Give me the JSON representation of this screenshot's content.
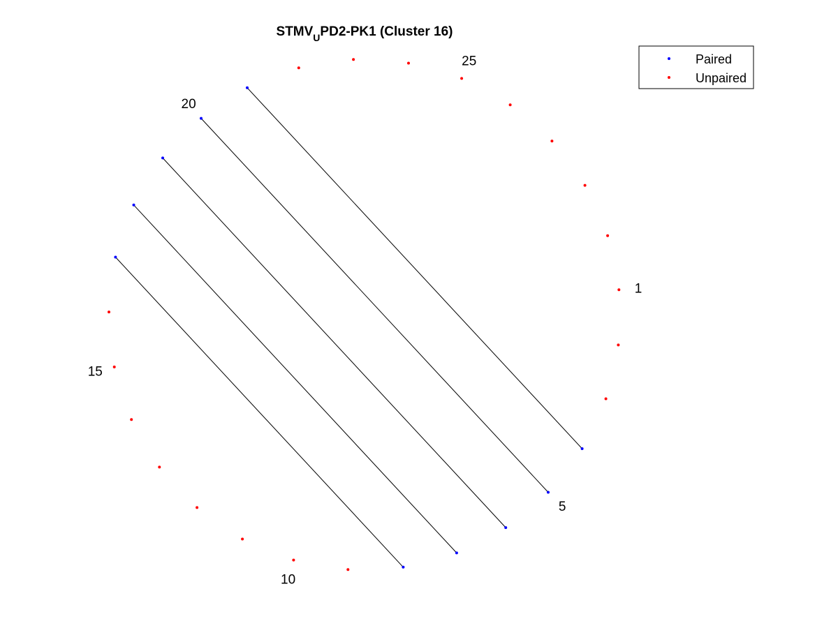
{
  "title": {
    "main": "STMV",
    "subscript": "U",
    "rest": "PD2-PK1 (Cluster 16)"
  },
  "legend": {
    "paired_label": "Paired",
    "unpaired_label": "Unpaired",
    "placement": "top-right"
  },
  "colors": {
    "paired": "#0000ff",
    "unpaired": "#ff0000",
    "pair_line": "#000000"
  },
  "diagram": {
    "type": "circular-arc-diagram",
    "n_positions": 29,
    "start_position": 1,
    "direction": "clockwise",
    "tick_labels": [
      "1",
      "5",
      "10",
      "15",
      "20",
      "25"
    ],
    "pairs": [
      [
        4,
        21
      ],
      [
        5,
        20
      ],
      [
        6,
        19
      ],
      [
        7,
        18
      ],
      [
        8,
        17
      ]
    ]
  }
}
